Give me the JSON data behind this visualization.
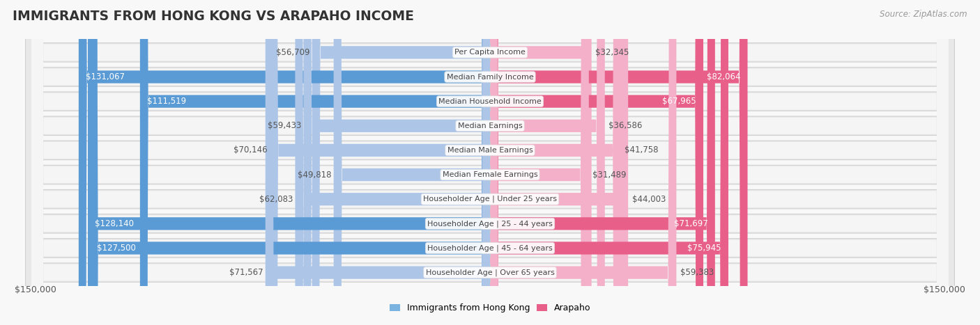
{
  "title": "IMMIGRANTS FROM HONG KONG VS ARAPAHO INCOME",
  "source": "Source: ZipAtlas.com",
  "categories": [
    "Per Capita Income",
    "Median Family Income",
    "Median Household Income",
    "Median Earnings",
    "Median Male Earnings",
    "Median Female Earnings",
    "Householder Age | Under 25 years",
    "Householder Age | 25 - 44 years",
    "Householder Age | 45 - 64 years",
    "Householder Age | Over 65 years"
  ],
  "hk_values": [
    56709,
    131067,
    111519,
    59433,
    70146,
    49818,
    62083,
    128140,
    127500,
    71567
  ],
  "arapaho_values": [
    32345,
    82064,
    67965,
    36586,
    41758,
    31489,
    44003,
    71697,
    75945,
    59383
  ],
  "hk_labels": [
    "$56,709",
    "$131,067",
    "$111,519",
    "$59,433",
    "$70,146",
    "$49,818",
    "$62,083",
    "$128,140",
    "$127,500",
    "$71,567"
  ],
  "arapaho_labels": [
    "$32,345",
    "$82,064",
    "$67,965",
    "$36,586",
    "$41,758",
    "$31,489",
    "$44,003",
    "$71,697",
    "$75,945",
    "$59,383"
  ],
  "max_value": 150000,
  "hk_color_light": "#adc6e8",
  "hk_color_dark": "#5b9bd5",
  "arapaho_color_light": "#f4b0c8",
  "arapaho_color_dark": "#e8608a",
  "label_dark": "#ffffff",
  "label_light": "#555555",
  "hk_dark_threshold": 100000,
  "arapaho_dark_threshold": 65000,
  "row_bg": "#f0f0f0",
  "row_inner_bg": "#ffffff",
  "center_line_color": "#cccccc",
  "fig_bg": "#f8f8f8",
  "legend_hk_color": "#7ab3e0",
  "legend_ar_color": "#e8608a"
}
